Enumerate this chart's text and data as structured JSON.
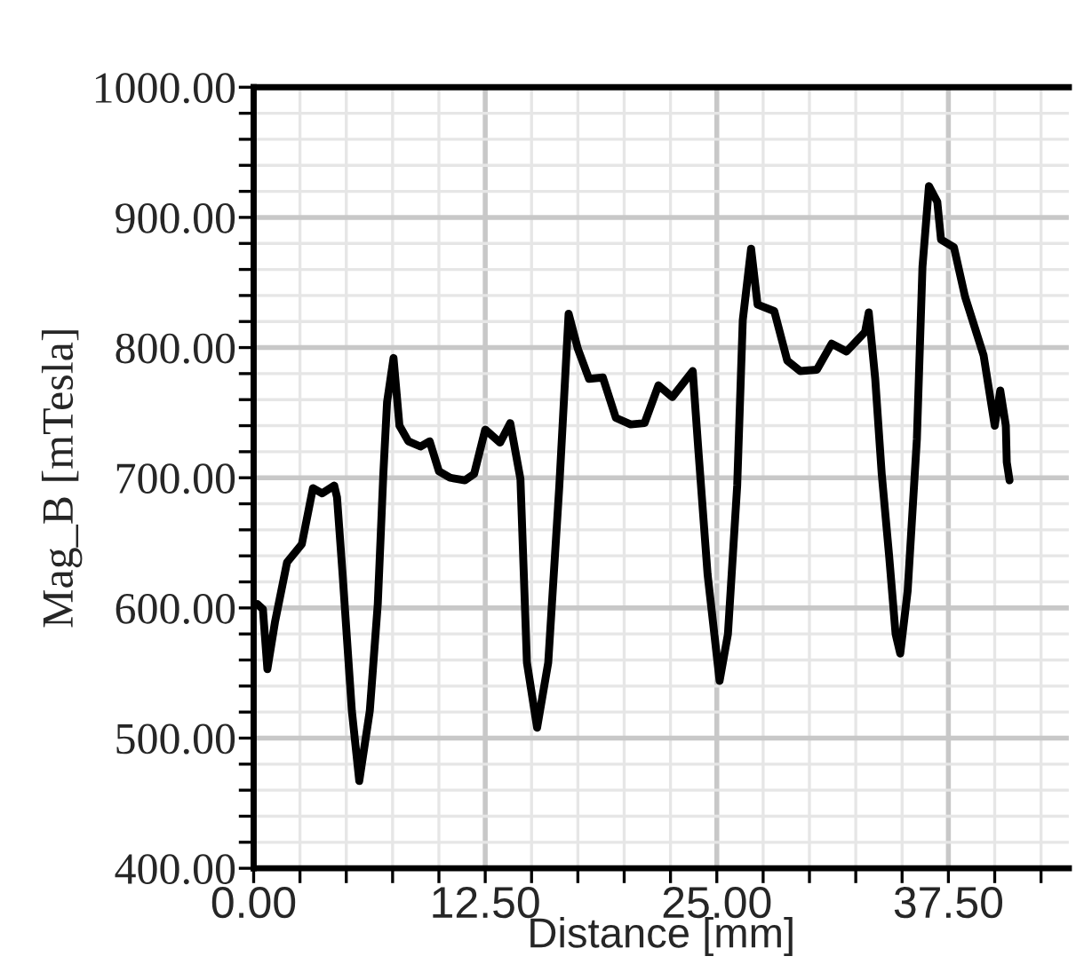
{
  "chart_data": {
    "type": "line",
    "xlabel": "Distance [mm]",
    "ylabel": "Mag_B [mTesla]",
    "x": [
      0.2,
      0.5,
      0.74,
      1.15,
      1.8,
      2.6,
      3.2,
      3.7,
      4.35,
      4.5,
      4.8,
      5.3,
      5.7,
      6.27,
      6.7,
      7.0,
      7.2,
      7.55,
      7.87,
      8.35,
      9.0,
      9.5,
      10.0,
      10.6,
      11.4,
      11.9,
      12.5,
      13.3,
      13.85,
      14.4,
      14.75,
      15.3,
      15.9,
      16.5,
      17.0,
      17.5,
      18.1,
      18.85,
      19.55,
      20.35,
      21.1,
      21.85,
      22.6,
      23.7,
      24.0,
      24.5,
      25.15,
      25.6,
      26.1,
      26.4,
      26.85,
      27.2,
      28.1,
      28.8,
      29.5,
      30.4,
      31.2,
      32.0,
      33.0,
      33.2,
      33.55,
      33.9,
      34.3,
      34.65,
      34.9,
      35.3,
      35.8,
      36.1,
      36.45,
      36.9,
      37.1,
      37.8,
      38.4,
      39.4,
      40.0,
      40.3,
      40.6,
      40.65,
      40.8
    ],
    "series": [
      {
        "color": "#000000",
        "values": [
          603,
          599,
          553,
          589,
          635,
          649,
          692,
          688,
          694,
          685,
          626,
          521,
          467,
          521,
          603,
          703,
          758,
          792,
          740,
          728,
          724,
          728,
          705,
          700,
          698,
          703,
          737,
          727,
          742,
          699,
          558,
          508,
          558,
          694,
          826,
          799,
          776,
          777,
          746,
          741,
          742,
          771,
          762,
          782,
          722,
          626,
          544,
          580,
          694,
          821,
          876,
          833,
          828,
          790,
          782,
          783,
          803,
          797,
          812,
          827,
          776,
          703,
          640,
          580,
          565,
          613,
          730,
          862,
          924,
          912,
          883,
          877,
          839,
          794,
          740,
          767,
          740,
          712,
          698
        ]
      }
    ],
    "xlim": [
      0,
      44
    ],
    "xticks": [
      {
        "value": 0,
        "label": "0.00"
      },
      {
        "value": 2.5,
        "label": null
      },
      {
        "value": 5,
        "label": null
      },
      {
        "value": 7.5,
        "label": null
      },
      {
        "value": 10,
        "label": null
      },
      {
        "value": 12.5,
        "label": "12.50"
      },
      {
        "value": 15,
        "label": null
      },
      {
        "value": 17.5,
        "label": null
      },
      {
        "value": 20,
        "label": null
      },
      {
        "value": 22.5,
        "label": null
      },
      {
        "value": 25,
        "label": "25.00"
      },
      {
        "value": 27.5,
        "label": null
      },
      {
        "value": 30,
        "label": null
      },
      {
        "value": 32.5,
        "label": null
      },
      {
        "value": 35,
        "label": null
      },
      {
        "value": 37.5,
        "label": "37.50"
      },
      {
        "value": 40,
        "label": null
      },
      {
        "value": 42.5,
        "label": null
      }
    ],
    "ylim": [
      400,
      1000
    ],
    "yticks": [
      {
        "value": 400,
        "label": "400.00"
      },
      {
        "value": 420,
        "label": null
      },
      {
        "value": 440,
        "label": null
      },
      {
        "value": 460,
        "label": null
      },
      {
        "value": 480,
        "label": null
      },
      {
        "value": 500,
        "label": "500.00"
      },
      {
        "value": 520,
        "label": null
      },
      {
        "value": 540,
        "label": null
      },
      {
        "value": 560,
        "label": null
      },
      {
        "value": 580,
        "label": null
      },
      {
        "value": 600,
        "label": "600.00"
      },
      {
        "value": 620,
        "label": null
      },
      {
        "value": 640,
        "label": null
      },
      {
        "value": 660,
        "label": null
      },
      {
        "value": 680,
        "label": null
      },
      {
        "value": 700,
        "label": "700.00"
      },
      {
        "value": 720,
        "label": null
      },
      {
        "value": 740,
        "label": null
      },
      {
        "value": 760,
        "label": null
      },
      {
        "value": 780,
        "label": null
      },
      {
        "value": 800,
        "label": "800.00"
      },
      {
        "value": 820,
        "label": null
      },
      {
        "value": 840,
        "label": null
      },
      {
        "value": 860,
        "label": null
      },
      {
        "value": 880,
        "label": null
      },
      {
        "value": 900,
        "label": "900.00"
      },
      {
        "value": 920,
        "label": null
      },
      {
        "value": 940,
        "label": null
      },
      {
        "value": 960,
        "label": null
      },
      {
        "value": 980,
        "label": null
      },
      {
        "value": 1000,
        "label": "1000.00"
      }
    ],
    "grid": true,
    "marker": "none",
    "line_style": "solid",
    "legend": false
  }
}
